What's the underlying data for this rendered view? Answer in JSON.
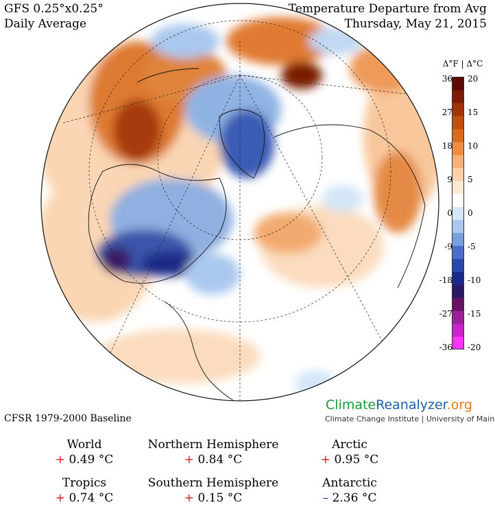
{
  "header": {
    "left_line1": "GFS 0.25°x0.25°",
    "left_line2": "Daily Average",
    "right_line1": "Temperature Departure from Avg",
    "right_line2": "Thursday, May 21, 2015"
  },
  "colorbar": {
    "unit_label": "Δ°F | Δ°C",
    "ticks_f": [
      "36",
      "27",
      "18",
      "9",
      "0",
      "-9",
      "-18",
      "-27",
      "-36"
    ],
    "ticks_c": [
      "20",
      "15",
      "10",
      "5",
      "0",
      "-5",
      "-10",
      "-15",
      "-20"
    ],
    "colors": [
      "#ff33ff",
      "#cc22cc",
      "#992299",
      "#661166",
      "#2a1a66",
      "#1a2a8a",
      "#2a4aaa",
      "#4a70c8",
      "#7aa0dc",
      "#aac8ee",
      "#d4e6f8",
      "#ffffff",
      "#fde8d4",
      "#fbd0aa",
      "#f7b07a",
      "#ee8c44",
      "#dd6a1a",
      "#c24e0e",
      "#a03408",
      "#7a1c06",
      "#5a0c04"
    ]
  },
  "baseline": "CFSR 1979-2000 Baseline",
  "brand": {
    "part1": "Climate",
    "part2": "Reanalyzer",
    "part3": ".org",
    "subtitle": "Climate Change Institute | University of Maine"
  },
  "stats": [
    {
      "label": "World",
      "sign": "+",
      "value": "0.49 °C"
    },
    {
      "label": "Northern Hemisphere",
      "sign": "+",
      "value": "0.84 °C"
    },
    {
      "label": "Arctic",
      "sign": "+",
      "value": "0.95 °C"
    },
    {
      "label": "Tropics",
      "sign": "+",
      "value": "0.74 °C"
    },
    {
      "label": "Southern Hemisphere",
      "sign": "+",
      "value": "0.15 °C"
    },
    {
      "label": "Antarctic",
      "sign": "–",
      "value": "2.36 °C"
    }
  ]
}
